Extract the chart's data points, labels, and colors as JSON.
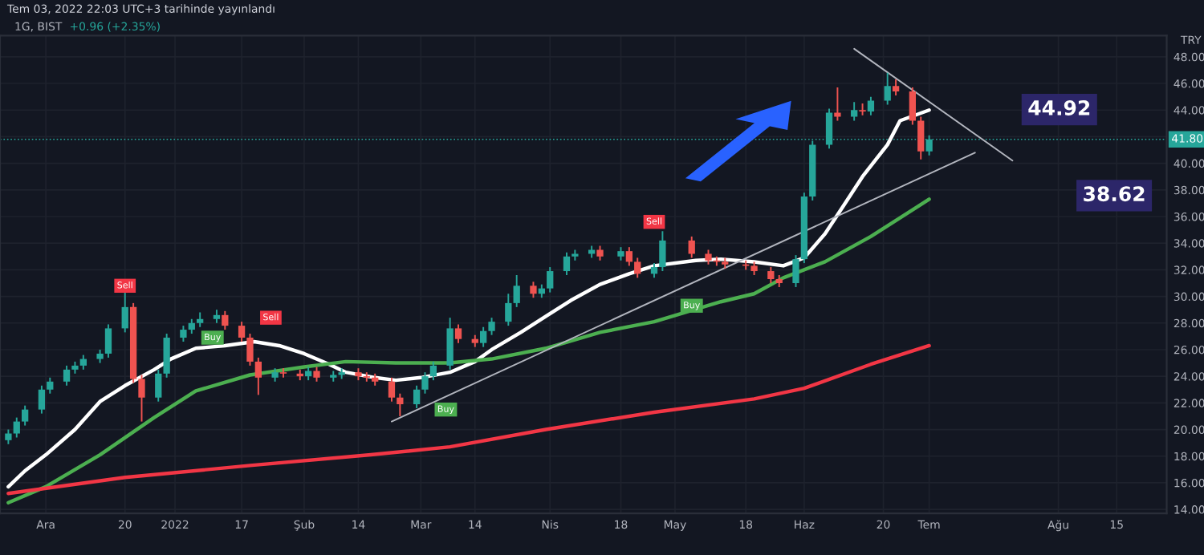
{
  "chart_data": {
    "type": "candlestick",
    "title": "1G, BIST",
    "subtitle": "+0.96 (+2.35%)",
    "ylabel": "TRY",
    "annotations": [
      "Tem 03, 2022 22:03 UTC+3 tarihinde yayınlandı",
      {
        "text": "Sell",
        "x": "2021-12-20",
        "y": 30.8
      },
      {
        "text": "Sell",
        "x": "2022-01-24",
        "y": 28.4
      },
      {
        "text": "Sell",
        "x": "2022-04-26",
        "y": 35.6
      },
      {
        "text": "Buy",
        "x": "2022-01-10",
        "y": 26.9
      },
      {
        "text": "Buy",
        "x": "2022-03-07",
        "y": 21.5
      },
      {
        "text": "Buy",
        "x": "2022-05-05",
        "y": 29.3
      },
      "44.92",
      "38.62"
    ],
    "x": [
      "2021-11-22",
      "2021-11-24",
      "2021-11-26",
      "2021-11-30",
      "2021-12-02",
      "2021-12-06",
      "2021-12-08",
      "2021-12-10",
      "2021-12-14",
      "2021-12-16",
      "2021-12-20",
      "2021-12-22",
      "2021-12-24",
      "2021-12-28",
      "2021-12-30",
      "2022-01-03",
      "2022-01-05",
      "2022-01-07",
      "2022-01-11",
      "2022-01-13",
      "2022-01-17",
      "2022-01-19",
      "2022-01-21",
      "2022-01-25",
      "2022-01-27",
      "2022-01-31",
      "2022-02-02",
      "2022-02-04",
      "2022-02-08",
      "2022-02-10",
      "2022-02-14",
      "2022-02-16",
      "2022-02-18",
      "2022-02-22",
      "2022-02-24",
      "2022-02-28",
      "2022-03-02",
      "2022-03-04",
      "2022-03-08",
      "2022-03-10",
      "2022-03-14",
      "2022-03-16",
      "2022-03-18",
      "2022-03-22",
      "2022-03-24",
      "2022-03-28",
      "2022-03-30",
      "2022-04-01",
      "2022-04-05",
      "2022-04-07",
      "2022-04-11",
      "2022-04-13",
      "2022-04-18",
      "2022-04-20",
      "2022-04-22",
      "2022-04-26",
      "2022-04-28",
      "2022-05-05",
      "2022-05-09",
      "2022-05-11",
      "2022-05-13",
      "2022-05-18",
      "2022-05-20",
      "2022-05-24",
      "2022-05-26",
      "2022-05-30",
      "2022-06-01",
      "2022-06-03",
      "2022-06-07",
      "2022-06-09",
      "2022-06-13",
      "2022-06-15",
      "2022-06-17",
      "2022-06-21",
      "2022-06-23",
      "2022-06-27",
      "2022-06-29",
      "2022-07-01"
    ],
    "ohlc": [
      [
        19.2,
        20.0,
        18.9,
        19.7
      ],
      [
        19.7,
        20.9,
        19.4,
        20.6
      ],
      [
        20.6,
        21.8,
        20.3,
        21.5
      ],
      [
        21.5,
        23.3,
        21.2,
        23.0
      ],
      [
        23.0,
        23.9,
        22.7,
        23.6
      ],
      [
        23.6,
        24.8,
        23.3,
        24.5
      ],
      [
        24.5,
        25.1,
        24.2,
        24.8
      ],
      [
        24.8,
        25.6,
        24.5,
        25.3
      ],
      [
        25.3,
        26.0,
        25.0,
        25.7
      ],
      [
        25.7,
        27.9,
        25.4,
        27.6
      ],
      [
        27.6,
        30.5,
        27.3,
        29.2
      ],
      [
        29.2,
        29.5,
        23.5,
        23.8
      ],
      [
        23.8,
        24.1,
        20.6,
        22.4
      ],
      [
        22.4,
        24.5,
        22.1,
        24.2
      ],
      [
        24.2,
        27.2,
        23.9,
        26.9
      ],
      [
        26.9,
        27.8,
        26.6,
        27.5
      ],
      [
        27.5,
        28.3,
        27.2,
        28.0
      ],
      [
        28.0,
        28.8,
        27.7,
        28.3
      ],
      [
        28.3,
        29.0,
        28.0,
        28.6
      ],
      [
        28.6,
        28.9,
        27.5,
        27.8
      ],
      [
        27.8,
        28.1,
        26.6,
        26.9
      ],
      [
        26.9,
        27.2,
        24.8,
        25.1
      ],
      [
        25.1,
        25.4,
        22.6,
        23.9
      ],
      [
        23.9,
        24.6,
        23.6,
        24.3
      ],
      [
        24.3,
        24.6,
        23.9,
        24.2
      ],
      [
        24.2,
        24.5,
        23.7,
        24.0
      ],
      [
        24.0,
        24.7,
        23.7,
        24.4
      ],
      [
        24.4,
        24.7,
        23.6,
        23.9
      ],
      [
        23.9,
        24.4,
        23.6,
        24.1
      ],
      [
        24.1,
        24.6,
        23.8,
        24.3
      ],
      [
        24.3,
        24.6,
        23.7,
        24.0
      ],
      [
        24.0,
        24.3,
        23.6,
        23.9
      ],
      [
        23.9,
        24.2,
        23.3,
        23.6
      ],
      [
        23.6,
        23.9,
        22.1,
        22.4
      ],
      [
        22.4,
        22.7,
        21.0,
        21.9
      ],
      [
        21.9,
        23.3,
        21.6,
        23.0
      ],
      [
        23.0,
        24.3,
        22.7,
        24.0
      ],
      [
        24.0,
        25.1,
        23.7,
        24.8
      ],
      [
        24.8,
        28.4,
        24.5,
        27.6
      ],
      [
        27.6,
        27.9,
        26.5,
        26.8
      ],
      [
        26.8,
        27.1,
        26.2,
        26.5
      ],
      [
        26.5,
        27.7,
        26.2,
        27.4
      ],
      [
        27.4,
        28.4,
        27.1,
        28.1
      ],
      [
        28.1,
        30.2,
        27.8,
        29.5
      ],
      [
        29.5,
        31.6,
        29.2,
        30.8
      ],
      [
        30.8,
        31.1,
        29.9,
        30.2
      ],
      [
        30.2,
        30.9,
        29.9,
        30.6
      ],
      [
        30.6,
        32.2,
        30.3,
        31.9
      ],
      [
        31.9,
        33.3,
        31.6,
        33.0
      ],
      [
        33.0,
        33.5,
        32.7,
        33.2
      ],
      [
        33.2,
        33.8,
        32.9,
        33.5
      ],
      [
        33.5,
        33.8,
        32.7,
        33.0
      ],
      [
        33.0,
        33.7,
        32.7,
        33.4
      ],
      [
        33.4,
        33.7,
        32.3,
        32.6
      ],
      [
        32.6,
        32.9,
        31.4,
        31.7
      ],
      [
        31.7,
        32.5,
        31.4,
        32.2
      ],
      [
        32.2,
        34.9,
        31.9,
        34.2
      ],
      [
        34.2,
        34.5,
        32.9,
        33.2
      ],
      [
        33.2,
        33.5,
        32.4,
        32.7
      ],
      [
        32.7,
        33.0,
        32.3,
        32.6
      ],
      [
        32.6,
        32.9,
        32.1,
        32.4
      ],
      [
        32.4,
        32.7,
        32.0,
        32.3
      ],
      [
        32.3,
        32.6,
        31.6,
        31.9
      ],
      [
        31.9,
        32.2,
        31.0,
        31.3
      ],
      [
        31.3,
        31.6,
        30.7,
        31.0
      ],
      [
        31.0,
        33.1,
        30.7,
        32.8
      ],
      [
        32.8,
        37.8,
        32.5,
        37.5
      ],
      [
        37.5,
        41.7,
        37.2,
        41.4
      ],
      [
        41.4,
        44.1,
        41.1,
        43.8
      ],
      [
        43.8,
        45.7,
        43.2,
        43.5
      ],
      [
        43.5,
        44.6,
        43.2,
        44.0
      ],
      [
        44.0,
        44.5,
        43.6,
        43.9
      ],
      [
        43.9,
        45.0,
        43.6,
        44.7
      ],
      [
        44.7,
        46.8,
        44.4,
        45.8
      ],
      [
        45.8,
        46.3,
        45.1,
        45.4
      ],
      [
        45.4,
        45.7,
        42.9,
        43.2
      ],
      [
        43.2,
        43.5,
        40.3,
        40.9
      ],
      [
        40.9,
        42.1,
        40.6,
        41.8
      ]
    ],
    "series": [
      {
        "type": "line",
        "color": "#ffffff",
        "x": [
          "2021-11-22",
          "2021-11-26",
          "2021-12-01",
          "2021-12-08",
          "2021-12-14",
          "2021-12-20",
          "2021-12-27",
          "2021-12-31",
          "2022-01-06",
          "2022-01-13",
          "2022-01-20",
          "2022-01-26",
          "2022-02-01",
          "2022-02-07",
          "2022-02-11",
          "2022-02-18",
          "2022-02-23",
          "2022-03-01",
          "2022-03-08",
          "2022-03-14",
          "2022-03-18",
          "2022-03-25",
          "2022-03-31",
          "2022-04-06",
          "2022-04-13",
          "2022-04-20",
          "2022-04-26",
          "2022-05-06",
          "2022-05-12",
          "2022-05-20",
          "2022-05-27",
          "2022-06-01",
          "2022-06-06",
          "2022-06-10",
          "2022-06-15",
          "2022-06-21",
          "2022-06-24",
          "2022-07-01"
        ],
        "values": [
          15.7,
          16.9,
          18.1,
          20.0,
          22.1,
          23.3,
          24.5,
          25.3,
          26.1,
          26.3,
          26.6,
          26.3,
          25.7,
          24.9,
          24.3,
          23.9,
          23.7,
          23.9,
          24.3,
          25.1,
          26.0,
          27.3,
          28.5,
          29.7,
          30.9,
          31.7,
          32.3,
          32.7,
          32.8,
          32.6,
          32.3,
          32.9,
          34.7,
          36.6,
          39.0,
          41.4,
          43.2,
          44.0
        ]
      },
      {
        "type": "line",
        "color": "#4caf50",
        "x": [
          "2021-11-22",
          "2021-12-01",
          "2021-12-14",
          "2021-12-27",
          "2022-01-06",
          "2022-01-19",
          "2022-02-01",
          "2022-02-11",
          "2022-02-23",
          "2022-03-08",
          "2022-03-18",
          "2022-03-31",
          "2022-04-13",
          "2022-04-26",
          "2022-05-12",
          "2022-05-20",
          "2022-05-27",
          "2022-06-06",
          "2022-06-17",
          "2022-07-01"
        ],
        "values": [
          14.5,
          15.7,
          18.1,
          20.9,
          22.9,
          24.1,
          24.7,
          25.1,
          25.0,
          25.0,
          25.3,
          26.1,
          27.3,
          28.1,
          29.6,
          30.2,
          31.4,
          32.6,
          34.5,
          37.3
        ]
      },
      {
        "type": "line",
        "color": "#f23645",
        "x": [
          "2021-11-22",
          "2021-12-20",
          "2022-01-19",
          "2022-02-17",
          "2022-03-08",
          "2022-03-31",
          "2022-04-26",
          "2022-05-20",
          "2022-06-01",
          "2022-06-17",
          "2022-07-01"
        ],
        "values": [
          15.2,
          16.4,
          17.3,
          18.1,
          18.7,
          20.0,
          21.3,
          22.3,
          23.1,
          24.9,
          26.3
        ]
      },
      {
        "type": "line",
        "color": "#b2b5be",
        "x": [
          "2022-02-22",
          "2022-07-12"
        ],
        "values": [
          20.6,
          40.8
        ]
      },
      {
        "type": "line",
        "color": "#b2b5be",
        "x": [
          "2022-06-13",
          "2022-07-21"
        ],
        "values": [
          48.6,
          40.2
        ]
      }
    ],
    "ref_lines": [
      {
        "axis": "y",
        "value": 41.8,
        "label": "41.80",
        "color": "#26a69a",
        "line_style": "dotted"
      }
    ],
    "xlim": [
      "2021-11-20",
      "2022-08-27"
    ],
    "ylim": [
      13.7,
      49.6
    ],
    "xticks": [
      {
        "value": "2021-12-01",
        "label": "Ara"
      },
      {
        "value": "2021-12-20",
        "label": "20"
      },
      {
        "value": "2022-01-01",
        "label": "2022"
      },
      {
        "value": "2022-01-17",
        "label": "17"
      },
      {
        "value": "2022-02-01",
        "label": "Şub"
      },
      {
        "value": "2022-02-14",
        "label": "14"
      },
      {
        "value": "2022-03-01",
        "label": "Mar"
      },
      {
        "value": "2022-03-14",
        "label": "14"
      },
      {
        "value": "2022-04-01",
        "label": "Nis"
      },
      {
        "value": "2022-04-18",
        "label": "18"
      },
      {
        "value": "2022-05-01",
        "label": "May"
      },
      {
        "value": "2022-05-18",
        "label": "18"
      },
      {
        "value": "2022-06-01",
        "label": "Haz"
      },
      {
        "value": "2022-06-20",
        "label": "20"
      },
      {
        "value": "2022-07-01",
        "label": "Tem"
      },
      {
        "value": "2022-08-01",
        "label": "Ağu"
      },
      {
        "value": "2022-08-15",
        "label": "15"
      }
    ],
    "yticks": [
      {
        "value": 14,
        "label": "14.00"
      },
      {
        "value": 16,
        "label": "16.00"
      },
      {
        "value": 18,
        "label": "18.00"
      },
      {
        "value": 20,
        "label": "20.00"
      },
      {
        "value": 22,
        "label": "22.00"
      },
      {
        "value": 24,
        "label": "24.00"
      },
      {
        "value": 26,
        "label": "26.00"
      },
      {
        "value": 28,
        "label": "28.00"
      },
      {
        "value": 30,
        "label": "30.00"
      },
      {
        "value": 32,
        "label": "32.00"
      },
      {
        "value": 34,
        "label": "34.00"
      },
      {
        "value": 36,
        "label": "36.00"
      },
      {
        "value": 38,
        "label": "38.00"
      },
      {
        "value": 40,
        "label": "40.00"
      },
      {
        "value": 42,
        "label": null
      },
      {
        "value": 44,
        "label": "44.00"
      },
      {
        "value": 46,
        "label": "46.00"
      },
      {
        "value": 48,
        "label": "48.00"
      }
    ],
    "grid": true
  }
}
